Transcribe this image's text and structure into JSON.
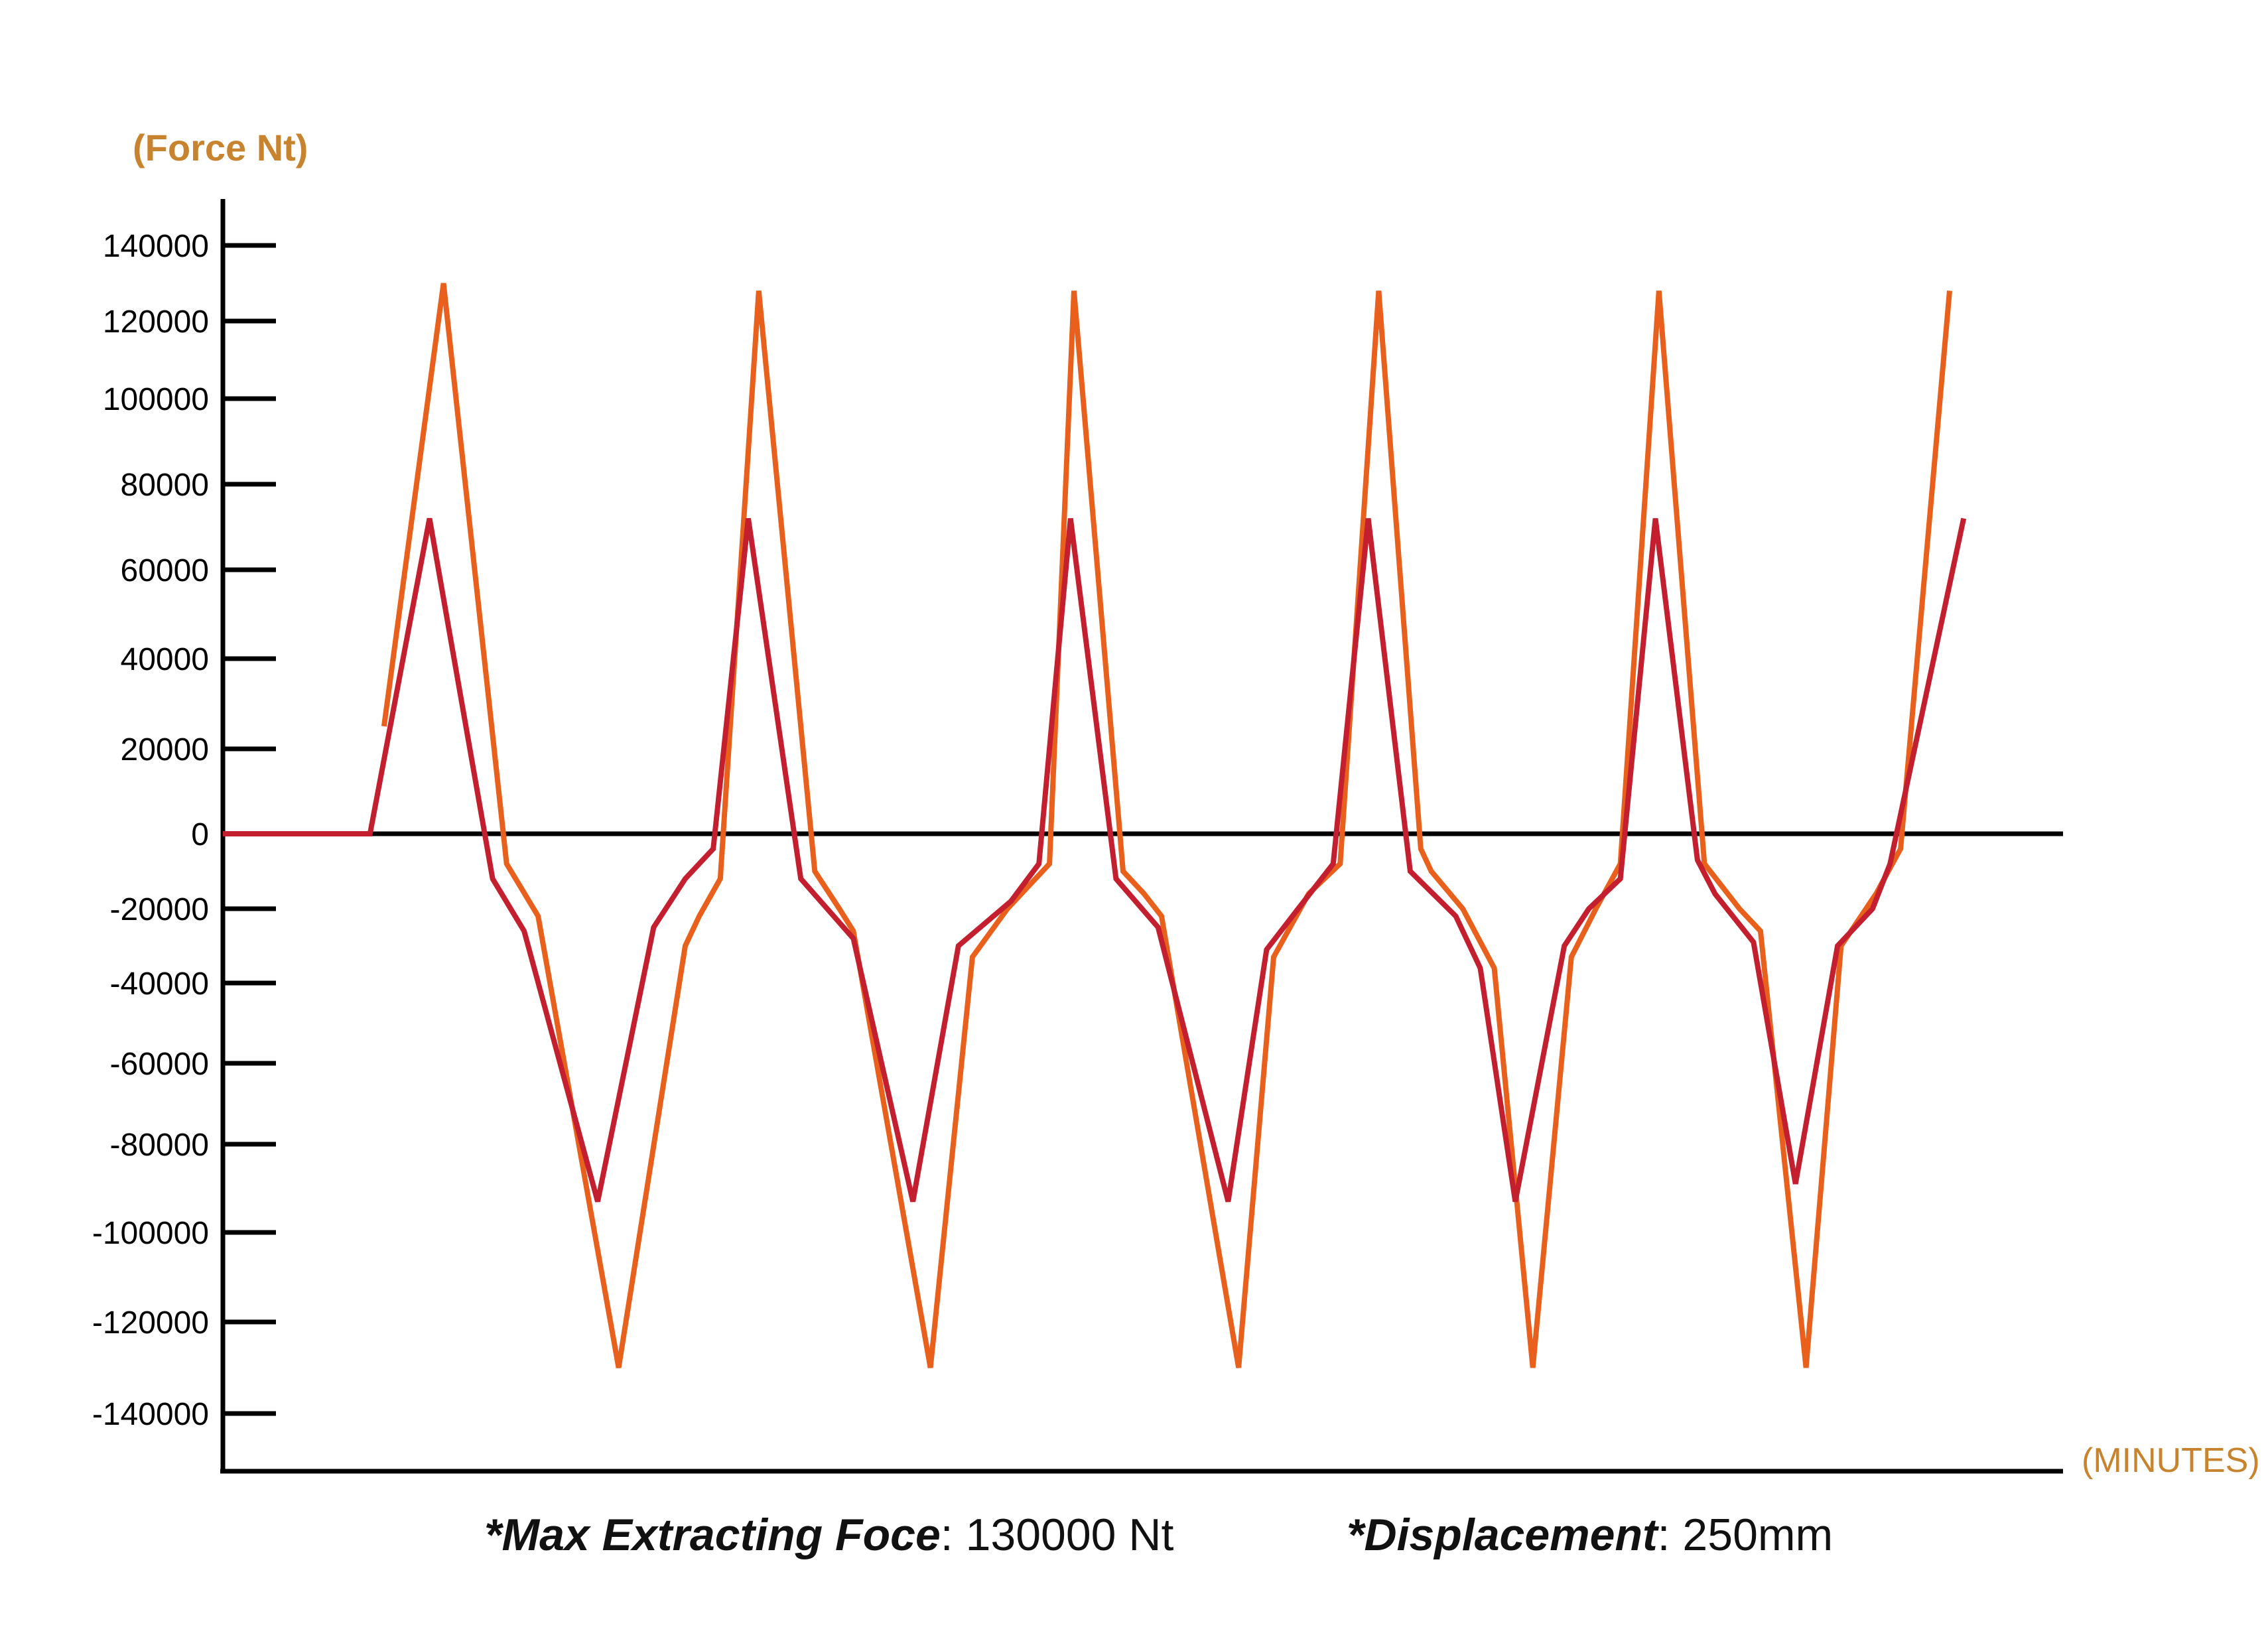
{
  "chart_data": {
    "type": "line",
    "ylabel": "(Force Nt)",
    "xlabel": "(MINUTES)",
    "ylim": [
      -140000,
      140000
    ],
    "yticks": [
      140000,
      120000,
      100000,
      80000,
      60000,
      40000,
      20000,
      0,
      -20000,
      -40000,
      -60000,
      -80000,
      -100000,
      -120000,
      -140000
    ],
    "ytick_labels": [
      "140000",
      "120000",
      "100000",
      "80000",
      "60000",
      "40000",
      "20000",
      "0",
      "-20000",
      "-40000",
      "-60000",
      "-80000",
      "-100000",
      "-120000",
      "-140000"
    ],
    "grid": false,
    "series": [
      {
        "color": "#e8601c",
        "points": [
          [
            4.6,
            25000
          ],
          [
            6.3,
            130000
          ],
          [
            8.1,
            -8000
          ],
          [
            9.0,
            -22000
          ],
          [
            11.3,
            -130000
          ],
          [
            13.2,
            -30000
          ],
          [
            13.6,
            -22000
          ],
          [
            14.2,
            -12000
          ],
          [
            15.3,
            128000
          ],
          [
            16.9,
            -10000
          ],
          [
            17.6,
            -20000
          ],
          [
            18.0,
            -26000
          ],
          [
            20.2,
            -130000
          ],
          [
            21.4,
            -33000
          ],
          [
            22.4,
            -20000
          ],
          [
            23.6,
            -8000
          ],
          [
            24.3,
            128000
          ],
          [
            25.7,
            -10000
          ],
          [
            26.3,
            -16000
          ],
          [
            26.8,
            -22000
          ],
          [
            29.0,
            -130000
          ],
          [
            30.0,
            -33000
          ],
          [
            31.0,
            -16000
          ],
          [
            31.9,
            -8000
          ],
          [
            33.0,
            128000
          ],
          [
            34.2,
            -4000
          ],
          [
            34.5,
            -10000
          ],
          [
            35.4,
            -20000
          ],
          [
            36.3,
            -36000
          ],
          [
            37.4,
            -130000
          ],
          [
            38.5,
            -33000
          ],
          [
            39.2,
            -20000
          ],
          [
            39.9,
            -8000
          ],
          [
            41.0,
            128000
          ],
          [
            42.3,
            -8000
          ],
          [
            43.3,
            -20000
          ],
          [
            43.9,
            -26000
          ],
          [
            45.2,
            -130000
          ],
          [
            46.2,
            -30000
          ],
          [
            47.2,
            -16000
          ],
          [
            47.9,
            -4000
          ],
          [
            49.3,
            128000
          ]
        ]
      },
      {
        "color": "#c41f2f",
        "points": [
          [
            0,
            0
          ],
          [
            4.2,
            0
          ],
          [
            5.9,
            72000
          ],
          [
            7.7,
            -12000
          ],
          [
            8.6,
            -26000
          ],
          [
            10.7,
            -93000
          ],
          [
            12.3,
            -25000
          ],
          [
            13.2,
            -12000
          ],
          [
            14.0,
            -4000
          ],
          [
            15.0,
            72000
          ],
          [
            16.5,
            -12000
          ],
          [
            18.0,
            -28000
          ],
          [
            19.7,
            -93000
          ],
          [
            21.0,
            -30000
          ],
          [
            22.5,
            -18000
          ],
          [
            23.3,
            -8000
          ],
          [
            24.2,
            72000
          ],
          [
            25.5,
            -12000
          ],
          [
            26.7,
            -25000
          ],
          [
            28.7,
            -93000
          ],
          [
            29.8,
            -31000
          ],
          [
            30.7,
            -20000
          ],
          [
            31.7,
            -8000
          ],
          [
            32.7,
            72000
          ],
          [
            33.9,
            -10000
          ],
          [
            35.2,
            -22000
          ],
          [
            35.9,
            -36000
          ],
          [
            36.9,
            -93000
          ],
          [
            38.3,
            -30000
          ],
          [
            39.0,
            -20000
          ],
          [
            39.9,
            -12000
          ],
          [
            40.9,
            72000
          ],
          [
            42.1,
            -7000
          ],
          [
            42.6,
            -16000
          ],
          [
            43.7,
            -29000
          ],
          [
            44.9,
            -89000
          ],
          [
            46.1,
            -30000
          ],
          [
            47.1,
            -20000
          ],
          [
            47.6,
            -8000
          ],
          [
            49.7,
            72000
          ]
        ]
      }
    ]
  },
  "footnotes": {
    "force_key": "*Max Extracting Foce",
    "force_value": ": 130000 Nt",
    "disp_key": "*Displacement",
    "disp_value": ": 250mm"
  }
}
